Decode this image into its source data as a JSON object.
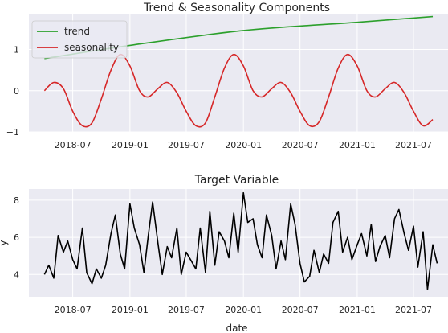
{
  "chart_data": [
    {
      "type": "line",
      "title": "Trend & Seasonality Components",
      "xlabel": "",
      "ylabel": "",
      "ylim": [
        -1,
        1.85
      ],
      "xlim": [
        "2018-02-10",
        "2021-10-20"
      ],
      "x_ticks": [
        "2018-07",
        "2019-01",
        "2019-07",
        "2020-01",
        "2020-07",
        "2021-01",
        "2021-07"
      ],
      "y_ticks": [
        -1,
        0,
        1
      ],
      "grid": true,
      "legend": "top-left",
      "series": [
        {
          "name": "trend",
          "color": "#2ca02c",
          "x": [
            "2018-04-01",
            "2019-01-01",
            "2020-01-01",
            "2021-01-01",
            "2021-09-01"
          ],
          "y": [
            0.78,
            1.1,
            1.46,
            1.66,
            1.8
          ]
        },
        {
          "name": "seasonality",
          "color": "#d62728",
          "x": [
            "2018-04-01",
            "2018-05-01",
            "2018-06-01",
            "2018-07-01",
            "2018-08-01",
            "2018-09-01",
            "2018-10-01",
            "2018-11-01",
            "2018-12-01",
            "2019-01-01",
            "2019-02-01",
            "2019-03-01",
            "2019-04-01",
            "2019-05-01",
            "2019-06-01",
            "2019-07-01",
            "2019-08-01",
            "2019-09-01",
            "2019-10-01",
            "2019-11-01",
            "2019-12-01",
            "2020-01-01",
            "2020-02-01",
            "2020-03-01",
            "2020-04-01",
            "2020-05-01",
            "2020-06-01",
            "2020-07-01",
            "2020-08-01",
            "2020-09-01",
            "2020-10-01",
            "2020-11-01",
            "2020-12-01",
            "2021-01-01",
            "2021-02-01",
            "2021-03-01",
            "2021-04-01",
            "2021-05-01",
            "2021-06-01",
            "2021-07-01",
            "2021-08-01",
            "2021-09-01"
          ],
          "y": [
            0.0,
            0.2,
            0.05,
            -0.5,
            -0.85,
            -0.78,
            -0.2,
            0.5,
            0.88,
            0.6,
            0.0,
            -0.15,
            0.05,
            0.2,
            -0.05,
            -0.5,
            -0.85,
            -0.78,
            -0.15,
            0.55,
            0.88,
            0.6,
            0.0,
            -0.15,
            0.05,
            0.2,
            -0.05,
            -0.5,
            -0.85,
            -0.75,
            -0.15,
            0.55,
            0.88,
            0.6,
            0.0,
            -0.15,
            0.05,
            0.2,
            -0.05,
            -0.5,
            -0.85,
            -0.7
          ]
        }
      ]
    },
    {
      "type": "line",
      "title": "Target Variable",
      "xlabel": "date",
      "ylabel": "y",
      "ylim": [
        2.8,
        8.6
      ],
      "xlim": [
        "2018-02-10",
        "2021-10-20"
      ],
      "x_ticks": [
        "2018-07",
        "2019-01",
        "2019-07",
        "2020-01",
        "2020-07",
        "2021-01",
        "2021-07"
      ],
      "y_ticks": [
        4,
        6,
        8
      ],
      "y_tick_labels": [
        "4",
        "6",
        "8"
      ],
      "grid": true,
      "series": [
        {
          "name": "",
          "color": "#000000",
          "x": [
            "2018-04-01",
            "2018-04-15",
            "2018-05-01",
            "2018-05-15",
            "2018-06-01",
            "2018-06-15",
            "2018-07-01",
            "2018-07-15",
            "2018-08-01",
            "2018-08-15",
            "2018-09-01",
            "2018-09-15",
            "2018-10-01",
            "2018-10-15",
            "2018-11-01",
            "2018-11-15",
            "2018-12-01",
            "2018-12-15",
            "2019-01-01",
            "2019-01-15",
            "2019-02-01",
            "2019-02-15",
            "2019-03-01",
            "2019-03-15",
            "2019-04-01",
            "2019-04-15",
            "2019-05-01",
            "2019-05-15",
            "2019-06-01",
            "2019-06-15",
            "2019-07-01",
            "2019-07-15",
            "2019-08-01",
            "2019-08-15",
            "2019-09-01",
            "2019-09-15",
            "2019-10-01",
            "2019-10-15",
            "2019-11-01",
            "2019-11-15",
            "2019-12-01",
            "2019-12-15",
            "2020-01-01",
            "2020-01-15",
            "2020-02-01",
            "2020-02-15",
            "2020-03-01",
            "2020-03-15",
            "2020-04-01",
            "2020-04-15",
            "2020-05-01",
            "2020-05-15",
            "2020-06-01",
            "2020-06-15",
            "2020-07-01",
            "2020-07-15",
            "2020-08-01",
            "2020-08-15",
            "2020-09-01",
            "2020-09-15",
            "2020-10-01",
            "2020-10-15",
            "2020-11-01",
            "2020-11-15",
            "2020-12-01",
            "2020-12-15",
            "2021-01-01",
            "2021-01-15",
            "2021-02-01",
            "2021-02-15",
            "2021-03-01",
            "2021-03-15",
            "2021-04-01",
            "2021-04-15",
            "2021-05-01",
            "2021-05-15",
            "2021-06-01",
            "2021-06-15",
            "2021-07-01",
            "2021-07-15",
            "2021-08-01",
            "2021-08-15",
            "2021-09-01",
            "2021-09-15"
          ],
          "y": [
            4.0,
            4.5,
            3.8,
            6.1,
            5.2,
            5.8,
            4.8,
            4.3,
            6.5,
            4.1,
            3.5,
            4.3,
            3.8,
            4.5,
            6.2,
            7.2,
            5.1,
            4.3,
            7.8,
            6.5,
            5.6,
            4.1,
            6.1,
            7.9,
            5.7,
            4.0,
            5.5,
            4.9,
            6.5,
            4.0,
            5.2,
            4.8,
            4.3,
            6.5,
            4.1,
            7.4,
            4.5,
            6.3,
            5.8,
            4.9,
            7.3,
            5.2,
            8.4,
            6.8,
            7.0,
            5.6,
            4.9,
            7.2,
            6.1,
            4.3,
            5.8,
            4.8,
            7.8,
            6.7,
            4.6,
            3.6,
            3.9,
            5.3,
            4.1,
            5.1,
            4.6,
            6.8,
            7.4,
            5.2,
            6.0,
            4.8,
            5.6,
            6.2,
            5.0,
            6.7,
            4.7,
            5.5,
            6.1,
            4.9,
            7.0,
            7.5,
            6.2,
            5.3,
            6.6,
            4.4,
            6.3,
            3.2,
            5.6,
            4.6
          ]
        }
      ]
    }
  ]
}
